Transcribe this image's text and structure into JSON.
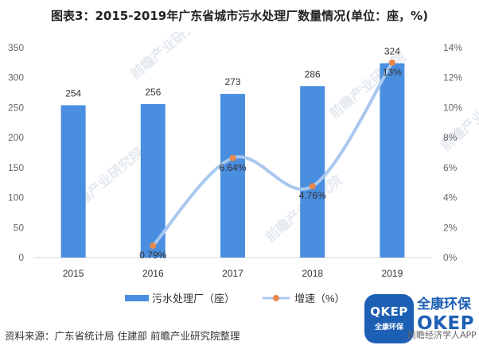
{
  "title": "图表3：2015-2019年广东省城市污水处理厂数量情况(单位：座，%)",
  "source": "资料来源：广东省统计局 住建部 前瞻产业研究院整理",
  "watermark": "前瞻产业研究院",
  "logo": {
    "badge_big": "QKEP",
    "badge_small": "全康环保",
    "brand_cn": "全康环保",
    "brand_en": "OKEP"
  },
  "app_note": "前瞻经济学人APP",
  "colors": {
    "bar": "#4a8ee0",
    "line": "#a9c8ef",
    "marker": "#e8884a",
    "axis_text": "#666666",
    "watermark": "#e4e9ef"
  },
  "chart_data": {
    "type": "bar+line",
    "categories": [
      "2015",
      "2016",
      "2017",
      "2018",
      "2019"
    ],
    "left_axis": {
      "ylim": [
        0,
        350
      ],
      "ticks": [
        0,
        50,
        100,
        150,
        200,
        250,
        300,
        350
      ]
    },
    "right_axis": {
      "ylim": [
        0,
        14
      ],
      "ticks": [
        "0%",
        "2%",
        "4%",
        "6%",
        "8%",
        "10%",
        "12%",
        "14%"
      ]
    },
    "bars": {
      "name": "污水处理厂（座）",
      "values": [
        254,
        256,
        273,
        286,
        324
      ],
      "labels": [
        "254",
        "256",
        "273",
        "286",
        "324"
      ]
    },
    "line": {
      "name": "增速（%）",
      "x_index": [
        1,
        2,
        3,
        4
      ],
      "values": [
        0.79,
        6.64,
        4.76,
        13
      ],
      "labels": [
        "0.79%",
        "6.64%",
        "4.76%",
        "13%"
      ]
    },
    "legend_position": "bottom"
  }
}
